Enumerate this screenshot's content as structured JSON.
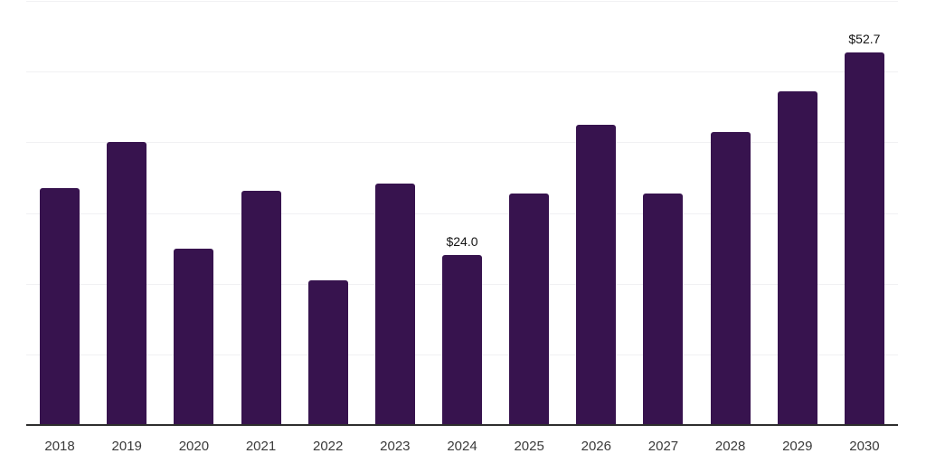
{
  "chart_data": {
    "type": "bar",
    "title": "",
    "xlabel": "",
    "ylabel": "",
    "categories": [
      "2018",
      "2019",
      "2020",
      "2021",
      "2022",
      "2023",
      "2024",
      "2025",
      "2026",
      "2027",
      "2028",
      "2029",
      "2030"
    ],
    "values": [
      33.5,
      40.0,
      25.0,
      33.1,
      20.5,
      34.1,
      24.0,
      32.7,
      42.5,
      32.8,
      41.5,
      47.2,
      52.7
    ],
    "data_labels": {
      "2024": "$24.0",
      "2030": "$52.7"
    },
    "ylim": [
      0,
      60
    ],
    "gridline_values": [
      10,
      20,
      30,
      40,
      50,
      60
    ],
    "grid": "horizontal gridlines only, no y-axis tick labels",
    "legend": "none",
    "colors": {
      "bar": "#37134e",
      "gridline": "#f1f1f3",
      "axis_line": "#2e2e2e",
      "tick_label": "#3a3a3a",
      "data_label": "#141414",
      "background": "#ffffff"
    }
  }
}
